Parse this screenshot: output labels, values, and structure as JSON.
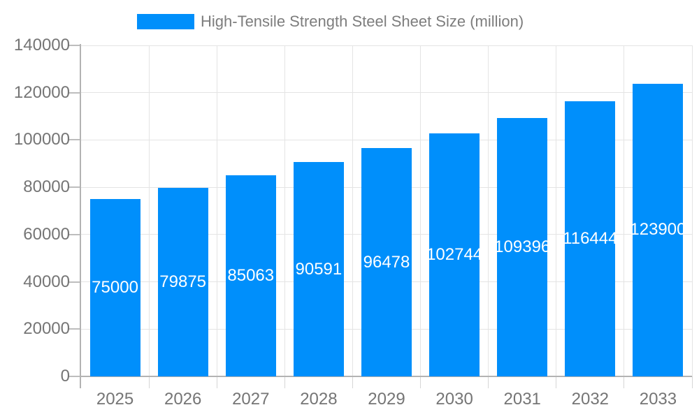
{
  "chart_data": {
    "type": "bar",
    "title": "High-Tensile Strength Steel Sheet Size (million)",
    "categories": [
      "2025",
      "2026",
      "2027",
      "2028",
      "2029",
      "2030",
      "2031",
      "2032",
      "2033"
    ],
    "values": [
      75000,
      79875,
      85063,
      90591,
      96478,
      102744,
      109396,
      116444,
      123900
    ],
    "value_labels": [
      "75000",
      "79875",
      "85063",
      "90591",
      "96478",
      "102744",
      "109396",
      "116444",
      "123900"
    ],
    "xlabel": "",
    "ylabel": "",
    "ylim": [
      0,
      140000
    ],
    "ytick_step": 20000,
    "ytick_labels": [
      "0",
      "20000",
      "40000",
      "60000",
      "80000",
      "100000",
      "120000",
      "140000"
    ],
    "grid": true,
    "legend_position": "top",
    "colors": {
      "bar": "#008FFB",
      "value_label": "#ffffff",
      "axis_text": "#757575",
      "legend_text": "#7d7d7d",
      "gridline": "#e4e4e4",
      "axis_line": "#b3b3b3"
    }
  }
}
